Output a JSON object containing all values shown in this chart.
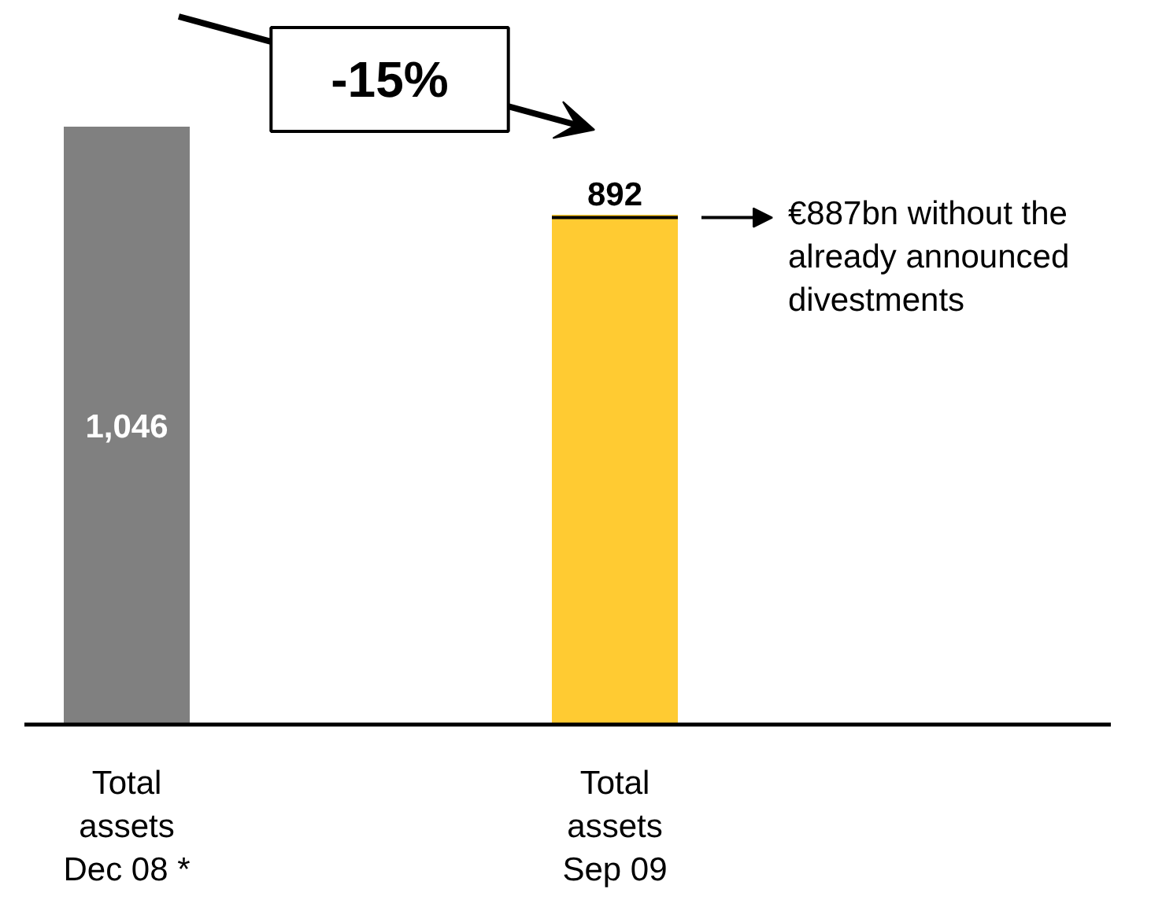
{
  "chart_data": {
    "type": "bar",
    "categories": [
      "Total\nassets\nDec 08 *",
      "Total\nassets\nSep 09"
    ],
    "values": [
      1046,
      892
    ],
    "colors": [
      "#808080",
      "#ffcb32"
    ],
    "value_labels": [
      "1,046",
      "892"
    ],
    "tick_labels": "x",
    "annotations": [
      "-15%"
    ],
    "ref_lines": [
      {
        "axis": "y",
        "value": 887,
        "label": "€887bn without the\nalready announced\ndivestments",
        "color": "#000000"
      }
    ]
  }
}
